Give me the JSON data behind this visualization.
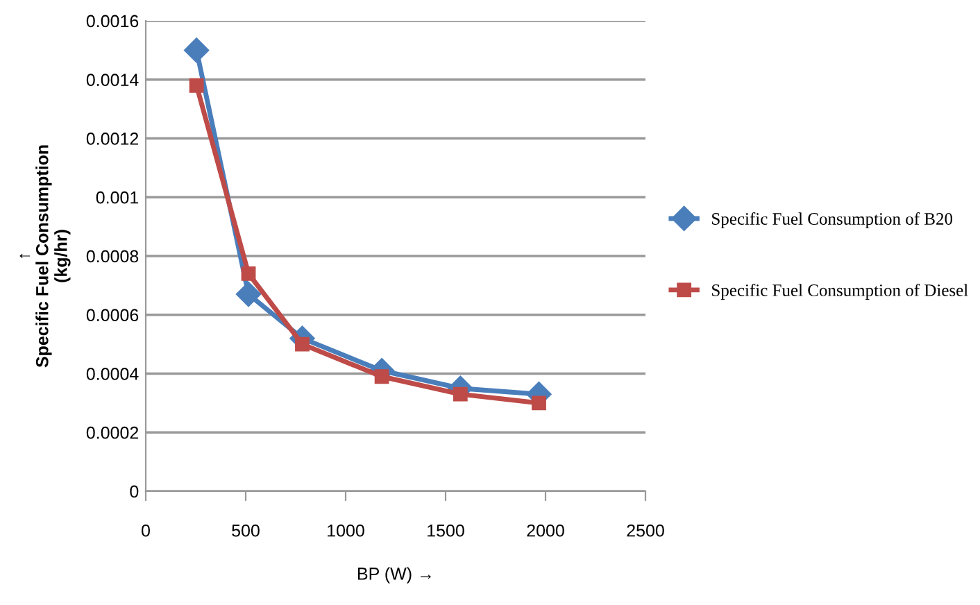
{
  "chart_data": {
    "type": "line",
    "xlabel": "BP (W) →",
    "ylabel": "↑\nSpecific Fuel Consumption\n(kg/hr)",
    "xlim": [
      0,
      2500
    ],
    "xticks": [
      0,
      500,
      1000,
      1500,
      2000,
      2500
    ],
    "ylim": [
      0,
      0.0016
    ],
    "yticks": [
      {
        "value": 0,
        "label": "0"
      },
      {
        "value": 0.0002,
        "label": "0.0002"
      },
      {
        "value": 0.0004,
        "label": "0.0004"
      },
      {
        "value": 0.0006,
        "label": "0.0006"
      },
      {
        "value": 0.0008,
        "label": "0.0008"
      },
      {
        "value": 0.001,
        "label": "0.001"
      },
      {
        "value": 0.0012,
        "label": "0.0012"
      },
      {
        "value": 0.0014,
        "label": "0.0014"
      },
      {
        "value": 0.0016,
        "label": "0.0016"
      }
    ],
    "grid": "y",
    "legend": "right",
    "series": [
      {
        "name": "Specific Fuel Consumption of B20",
        "color": "#4a7ebb",
        "marker": "diamond",
        "x": [
          254,
          514,
          783,
          1181,
          1574,
          1967
        ],
        "values": [
          0.0015,
          0.00067,
          0.00052,
          0.00041,
          0.00035,
          0.00033
        ]
      },
      {
        "name": "Specific Fuel Consumption of Diesel",
        "color": "#be4b48",
        "marker": "square",
        "x": [
          254,
          514,
          783,
          1181,
          1574,
          1967
        ],
        "values": [
          0.00138,
          0.00074,
          0.0005,
          0.00039,
          0.00033,
          0.0003
        ]
      }
    ]
  }
}
